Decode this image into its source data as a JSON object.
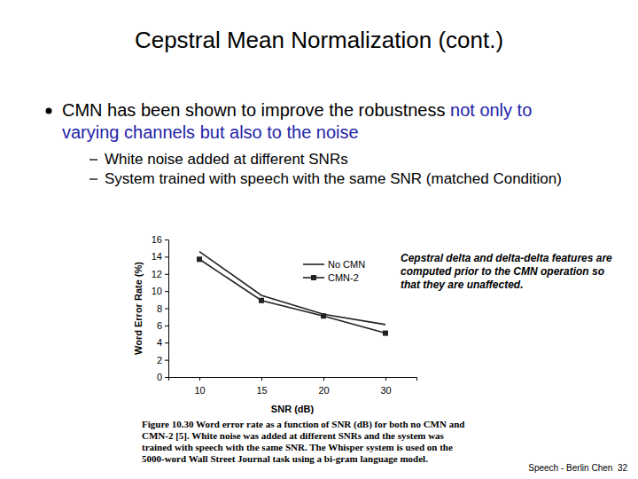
{
  "slide": {
    "title": "Cepstral Mean Normalization (cont.)",
    "bullets": [
      {
        "text": "CMN has been shown to improve the robustness",
        "highlight": "not only to varying channels but also to the noise",
        "sub": [
          "White noise added at different SNRs",
          "System trained with speech with the same SNR (matched Condition)"
        ]
      }
    ],
    "footer": "Speech - Berlin Chen  32"
  },
  "chart_data": {
    "type": "line",
    "x_label": "SNR (dB)",
    "y_label": "Word Error Rate (%)",
    "categories": [
      "10",
      "15",
      "20",
      "30"
    ],
    "series": [
      {
        "name": "No CMN",
        "color": "#222222",
        "marker": "none",
        "values": [
          14.6,
          9.5,
          7.3,
          6.1
        ]
      },
      {
        "name": "CMN-2",
        "color": "#222222",
        "marker": "square",
        "values": [
          13.7,
          8.9,
          7.1,
          5.1
        ]
      }
    ],
    "ylim": [
      0,
      16
    ],
    "yticks": [
      0,
      2,
      4,
      6,
      8,
      10,
      12,
      14,
      16
    ],
    "grid": false,
    "legend": "upper right",
    "annotation": "Cepstral delta and delta-delta features are computed prior to the CMN operation so that they are unaffected.",
    "caption": "Figure 10.30 Word error rate as a function of SNR (dB) for both no CMN and CMN-2 [5]. White noise was added at different SNRs and the system was trained with speech with the same SNR. The Whisper system is used on the 5000-word Wall Street Journal task using a bi-gram language model."
  }
}
